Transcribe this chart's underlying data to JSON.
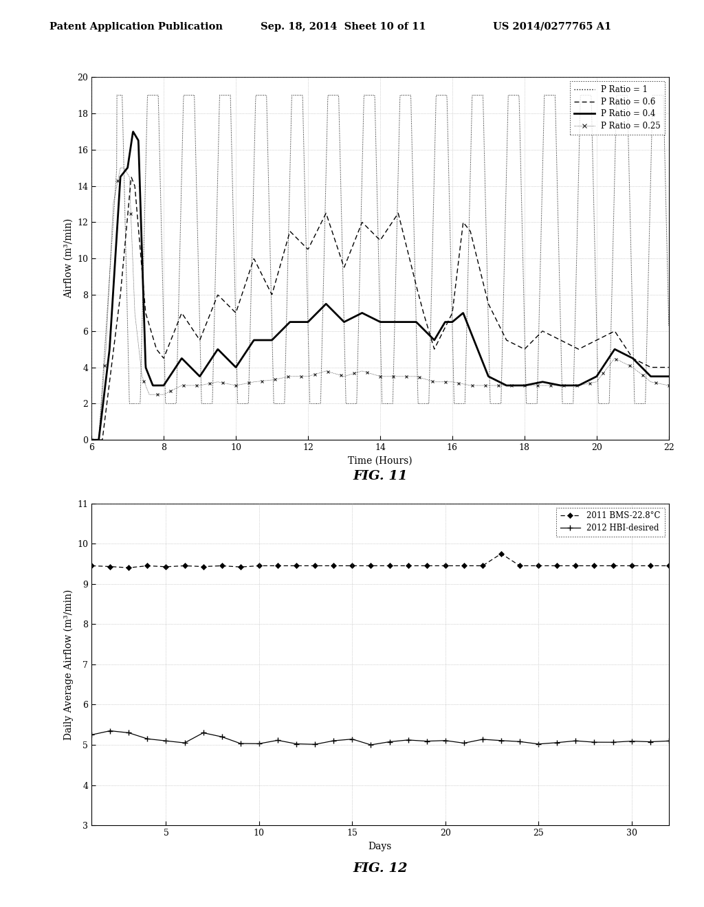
{
  "header_left": "Patent Application Publication",
  "header_center": "Sep. 18, 2014  Sheet 10 of 11",
  "header_right": "US 2014/0277765 A1",
  "fig11_title": "FIG. 11",
  "fig12_title": "FIG. 12",
  "fig11_xlabel": "Time (Hours)",
  "fig11_ylabel": "Airflow (m³/min)",
  "fig11_xlim": [
    6,
    22
  ],
  "fig11_ylim": [
    0,
    20
  ],
  "fig11_xticks": [
    6,
    8,
    10,
    12,
    14,
    16,
    18,
    20,
    22
  ],
  "fig11_yticks": [
    0,
    2,
    4,
    6,
    8,
    10,
    12,
    14,
    16,
    18,
    20
  ],
  "fig11_legend": [
    "P Ratio = 1",
    "P Ratio = 0.6",
    "P Ratio = 0.4",
    "P Ratio = 0.25"
  ],
  "fig12_xlabel": "Days",
  "fig12_ylabel": "Daily Average Airflow (m³/min)",
  "fig12_xlim": [
    1,
    32
  ],
  "fig12_ylim": [
    3,
    11
  ],
  "fig12_xticks": [
    5,
    10,
    15,
    20,
    25,
    30
  ],
  "fig12_yticks": [
    3,
    4,
    5,
    6,
    7,
    8,
    9,
    10,
    11
  ],
  "fig12_legend": [
    "2011 BMS-22.8°C",
    "2012 HBI-desired"
  ],
  "background_color": "#ffffff",
  "line_color": "#000000",
  "grid_color": "#999999"
}
